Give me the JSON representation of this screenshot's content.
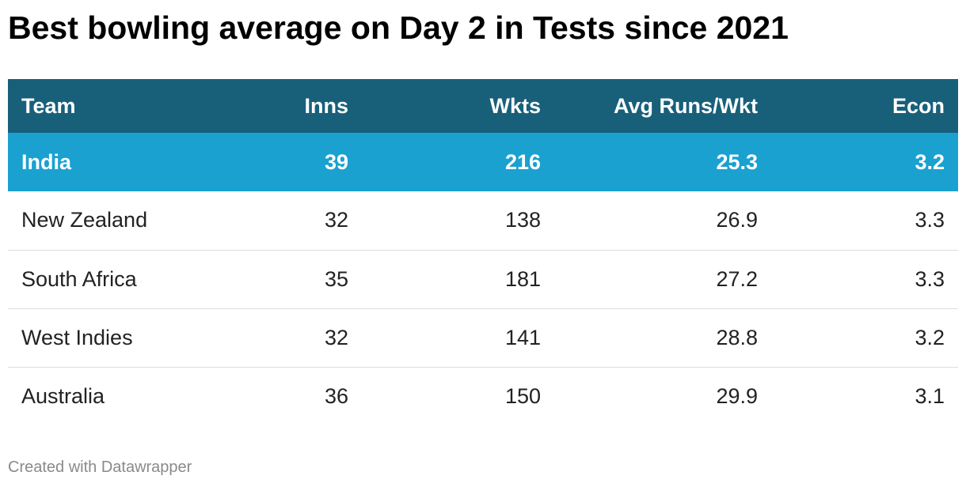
{
  "title": "Best bowling average on Day 2 in Tests since 2021",
  "footer": "Created with Datawrapper",
  "colors": {
    "header_bg": "#18607a",
    "highlight_bg": "#1aa1d0",
    "header_text": "#ffffff",
    "row_text": "#222222",
    "divider": "#dddddd"
  },
  "chart_data": {
    "type": "table",
    "title": "Best bowling average on Day 2 in Tests since 2021",
    "columns": [
      "Team",
      "Inns",
      "Wkts",
      "Avg Runs/Wkt",
      "Econ"
    ],
    "highlighted_row": "India",
    "rows": [
      {
        "team": "India",
        "inns": "39",
        "wkts": "216",
        "avg": "25.3",
        "econ": "3.2"
      },
      {
        "team": "New Zealand",
        "inns": "32",
        "wkts": "138",
        "avg": "26.9",
        "econ": "3.3"
      },
      {
        "team": "South Africa",
        "inns": "35",
        "wkts": "181",
        "avg": "27.2",
        "econ": "3.3"
      },
      {
        "team": "West Indies",
        "inns": "32",
        "wkts": "141",
        "avg": "28.8",
        "econ": "3.2"
      },
      {
        "team": "Australia",
        "inns": "36",
        "wkts": "150",
        "avg": "29.9",
        "econ": "3.1"
      }
    ]
  }
}
